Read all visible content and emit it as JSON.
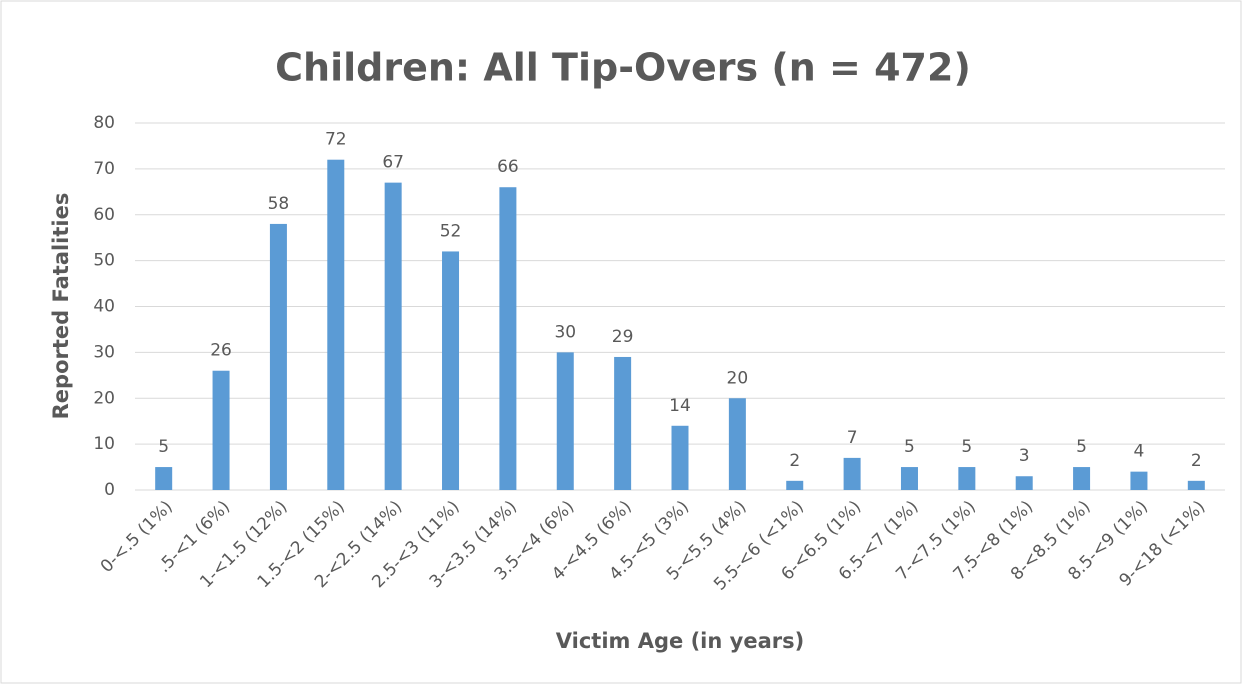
{
  "chart_data": {
    "type": "bar",
    "title": "Children: All Tip-Overs (n = 472)",
    "x_label": "Victim Age (in years)",
    "y_label": "Reported Fatalities",
    "categories": [
      "0-<.5 (1%)",
      ".5-<1 (6%)",
      "1-<1.5 (12%)",
      "1.5-<2 (15%)",
      "2-<2.5 (14%)",
      "2.5-<3 (11%)",
      "3-<3.5 (14%)",
      "3.5-<4 (6%)",
      "4-<4.5 (6%)",
      "4.5-<5 (3%)",
      "5-<5.5 (4%)",
      "5.5-<6 (<1%)",
      "6-<6.5 (1%)",
      "6.5-<7 (1%)",
      "7-<7.5 (1%)",
      "7.5-<8 (1%)",
      "8-<8.5 (1%)",
      "8.5-<9 (1%)",
      "9-<18 (<1%)"
    ],
    "values": [
      5,
      26,
      58,
      72,
      67,
      52,
      66,
      30,
      29,
      14,
      20,
      2,
      7,
      5,
      5,
      3,
      5,
      4,
      2
    ],
    "color": "#5b9bd5",
    "ylim": [
      0,
      80
    ],
    "yticks": [
      0,
      10,
      20,
      30,
      40,
      50,
      60,
      70,
      80
    ],
    "grid": true
  }
}
